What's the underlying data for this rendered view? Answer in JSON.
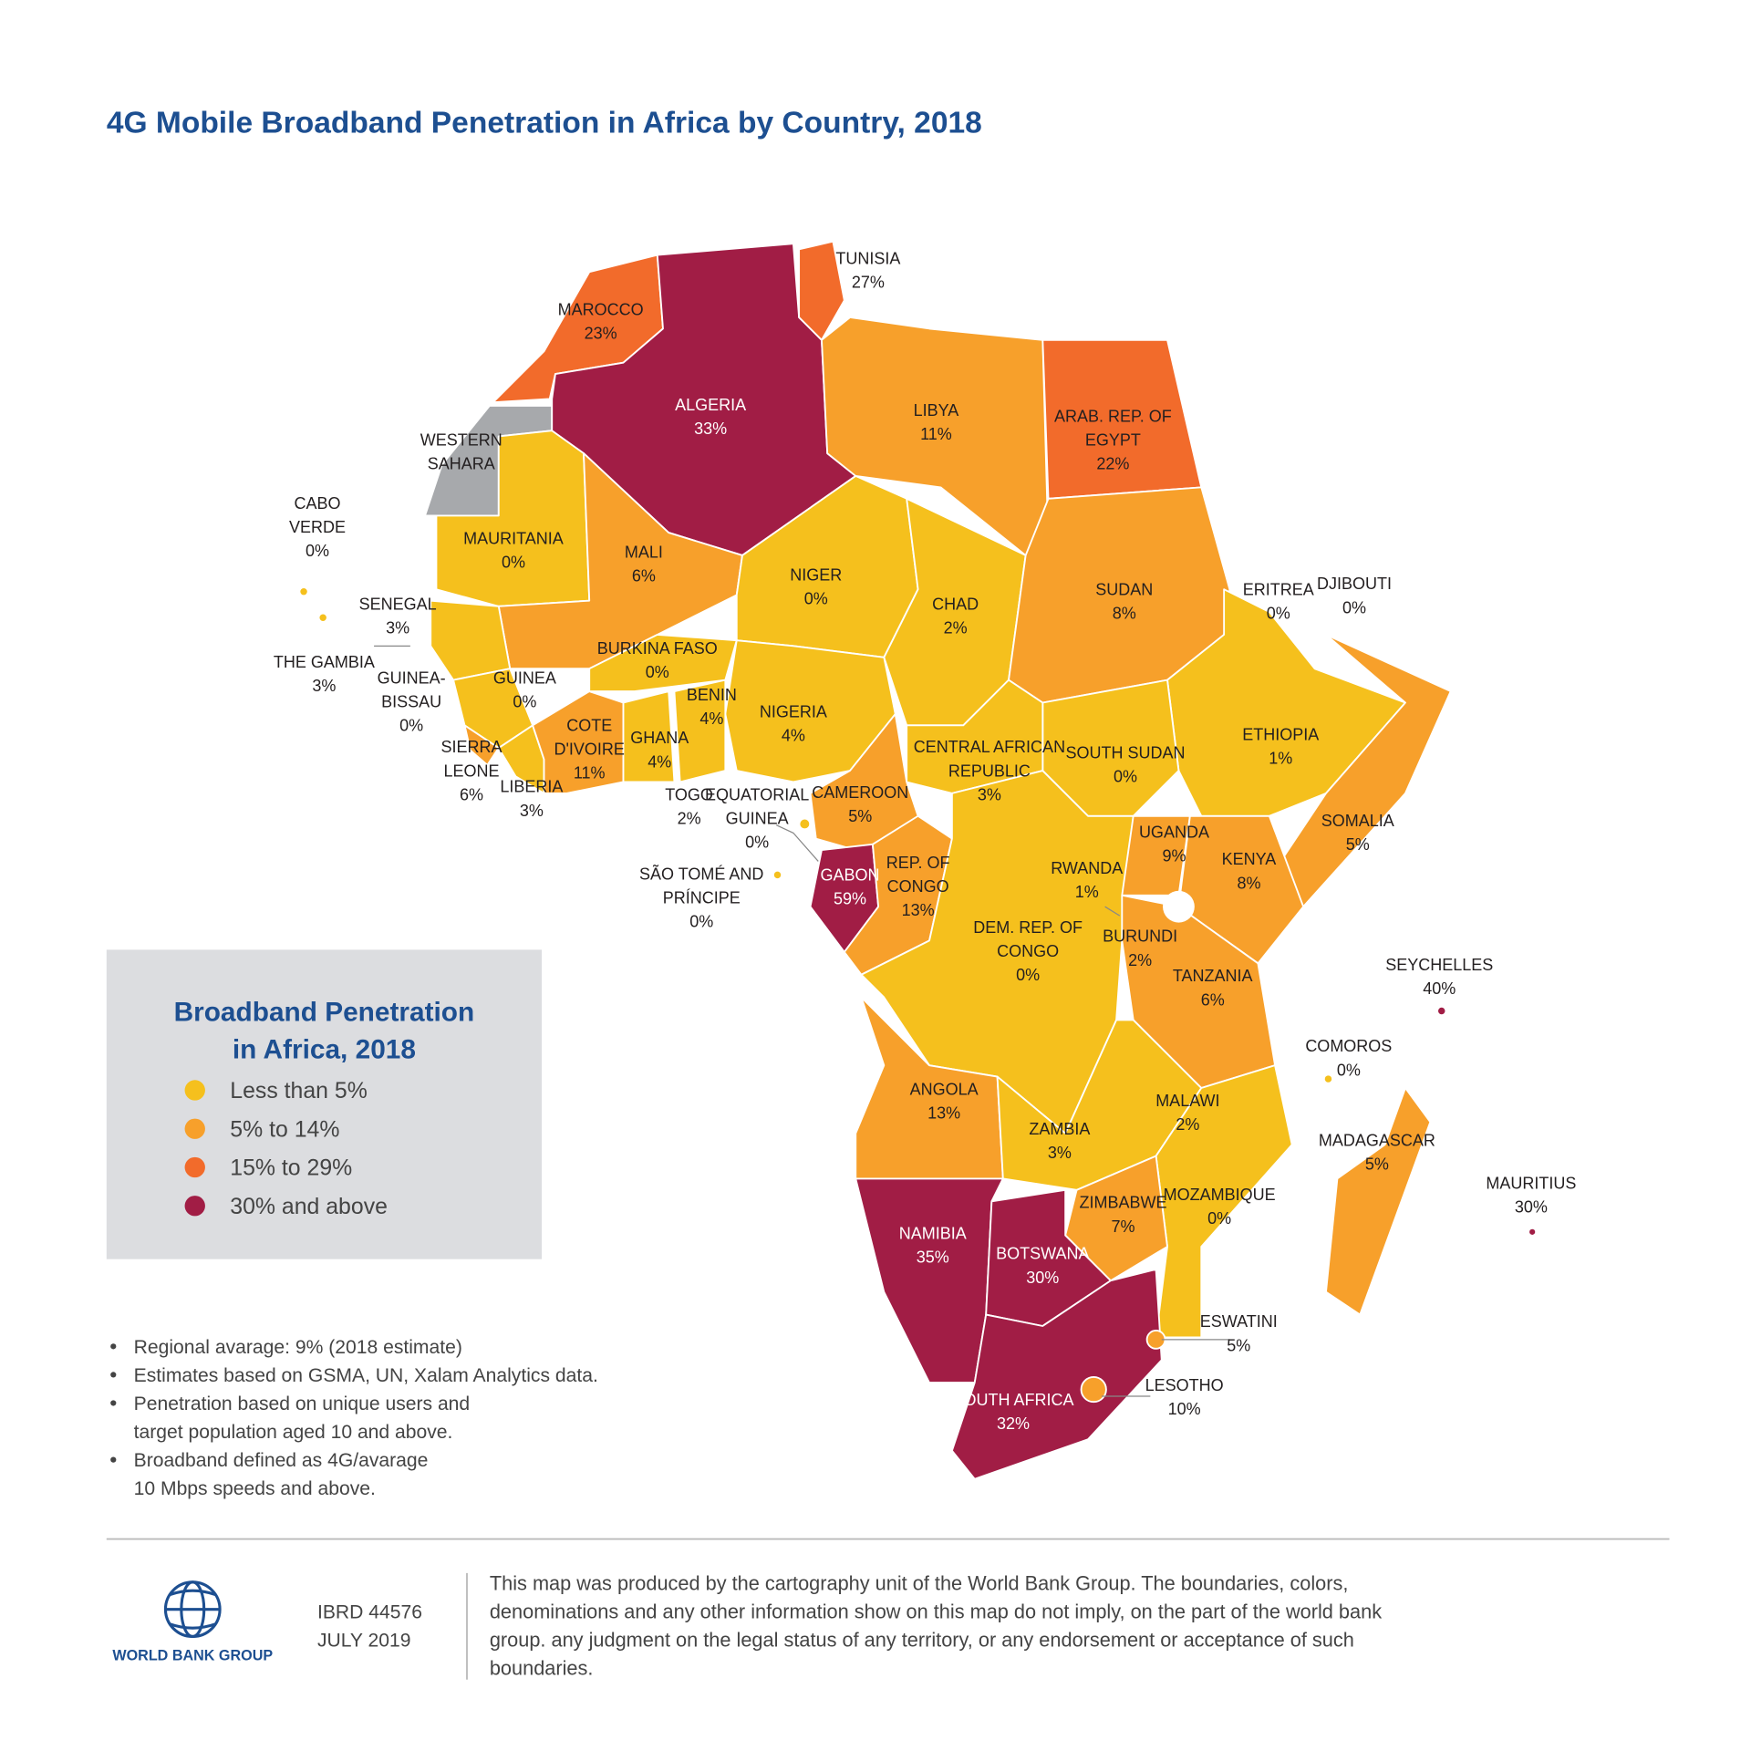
{
  "title": "4G Mobile Broadband Penetration in Africa by Country, 2018",
  "map": {
    "countries": [
      {
        "name": [
          "TUNISIA"
        ],
        "value": "27%"
      },
      {
        "name": [
          "MAROCCO"
        ],
        "value": "23%"
      },
      {
        "name": [
          "ALGERIA"
        ],
        "value": "33%"
      },
      {
        "name": [
          "LIBYA"
        ],
        "value": "11%"
      },
      {
        "name": [
          "ARAB. REP. OF",
          "EGYPT"
        ],
        "value": "22%"
      },
      {
        "name": [
          "WESTERN",
          "SAHARA"
        ]
      },
      {
        "name": [
          "CABO",
          "VERDE"
        ],
        "value": "0%"
      },
      {
        "name": [
          "MAURITANIA"
        ],
        "value": "0%"
      },
      {
        "name": [
          "MALI"
        ],
        "value": "6%"
      },
      {
        "name": [
          "NIGER"
        ],
        "value": "0%"
      },
      {
        "name": [
          "CHAD"
        ],
        "value": "2%"
      },
      {
        "name": [
          "SUDAN"
        ],
        "value": "8%"
      },
      {
        "name": [
          "ERITREA"
        ],
        "value": "0%"
      },
      {
        "name": [
          "DJIBOUTI"
        ],
        "value": "0%"
      },
      {
        "name": [
          "SENEGAL"
        ],
        "value": "3%"
      },
      {
        "name": [
          "THE GAMBIA"
        ],
        "value": "3%"
      },
      {
        "name": [
          "BURKINA FASO"
        ],
        "value": "0%"
      },
      {
        "name": [
          "GUINEA-",
          "BISSAU"
        ],
        "value": "0%"
      },
      {
        "name": [
          "GUINEA"
        ],
        "value": "0%"
      },
      {
        "name": [
          "BENIN"
        ],
        "value": "4%"
      },
      {
        "name": [
          "NIGERIA"
        ],
        "value": "4%"
      },
      {
        "name": [
          "ETHIOPIA"
        ],
        "value": "1%"
      },
      {
        "name": [
          "SOUTH SUDAN"
        ],
        "value": "0%"
      },
      {
        "name": [
          "CENTRAL AFRICAN",
          "REPUBLIC"
        ],
        "value": "3%"
      },
      {
        "name": [
          "COTE",
          "D'IVOIRE"
        ],
        "value": "11%"
      },
      {
        "name": [
          "GHANA"
        ],
        "value": "4%"
      },
      {
        "name": [
          "SIERRA",
          "LEONE"
        ],
        "value": "6%"
      },
      {
        "name": [
          "LIBERIA"
        ],
        "value": "3%"
      },
      {
        "name": [
          "TOGO"
        ],
        "value": "2%"
      },
      {
        "name": [
          "EQUATORIAL",
          "GUINEA"
        ],
        "value": "0%"
      },
      {
        "name": [
          "CAMEROON"
        ],
        "value": "5%"
      },
      {
        "name": [
          "SOMALIA"
        ],
        "value": "5%"
      },
      {
        "name": [
          "UGANDA"
        ],
        "value": "9%"
      },
      {
        "name": [
          "KENYA"
        ],
        "value": "8%"
      },
      {
        "name": [
          "RWANDA"
        ],
        "value": "1%"
      },
      {
        "name": [
          "SÃO TOMÉ AND",
          "PRÍNCIPE"
        ],
        "value": "0%"
      },
      {
        "name": [
          "GABON"
        ],
        "value": "59%"
      },
      {
        "name": [
          "REP. OF",
          "CONGO"
        ],
        "value": "13%"
      },
      {
        "name": [
          "DEM. REP. OF",
          "CONGO"
        ],
        "value": "0%"
      },
      {
        "name": [
          "BURUNDI"
        ],
        "value": "2%"
      },
      {
        "name": [
          "TANZANIA"
        ],
        "value": "6%"
      },
      {
        "name": [
          "SEYCHELLES"
        ],
        "value": "40%"
      },
      {
        "name": [
          "COMOROS"
        ],
        "value": "0%"
      },
      {
        "name": [
          "ANGOLA"
        ],
        "value": "13%"
      },
      {
        "name": [
          "ZAMBIA"
        ],
        "value": "3%"
      },
      {
        "name": [
          "MALAWI"
        ],
        "value": "2%"
      },
      {
        "name": [
          "MADAGASCAR"
        ],
        "value": "5%"
      },
      {
        "name": [
          "MOZAMBIQUE"
        ],
        "value": "0%"
      },
      {
        "name": [
          "MAURITIUS"
        ],
        "value": "30%"
      },
      {
        "name": [
          "ZIMBABWE"
        ],
        "value": "7%"
      },
      {
        "name": [
          "NAMIBIA"
        ],
        "value": "35%"
      },
      {
        "name": [
          "BOTSWANA"
        ],
        "value": "30%"
      },
      {
        "name": [
          "ESWATINI"
        ],
        "value": "5%"
      },
      {
        "name": [
          "LESOTHO"
        ],
        "value": "10%"
      },
      {
        "name": [
          "SOUTH AFRICA"
        ],
        "value": "32%"
      }
    ]
  },
  "legend": {
    "title": [
      "Broadband Penetration",
      "in Africa, 2018"
    ],
    "items": [
      {
        "label": "Less than 5%",
        "color": "#f5c01d"
      },
      {
        "label": "5% to 14%",
        "color": "#f7a02b"
      },
      {
        "label": "15% to 29%",
        "color": "#f26b2b"
      },
      {
        "label": "30% and above",
        "color": "#a11d45"
      }
    ]
  },
  "notes": [
    [
      "Regional avarage: 9% (2018 estimate)"
    ],
    [
      "Estimates based on GSMA, UN, Xalam Analytics data."
    ],
    [
      "Penetration based on unique users and",
      "target population aged 10 and above."
    ],
    [
      "Broadband defined as 4G/avarage",
      "10 Mbps speeds and above."
    ]
  ],
  "footer": {
    "logo": "WORLD BANK GROUP",
    "code": "IBRD 44576",
    "date": "JULY 2019",
    "disclaimer": [
      "This map was produced by the cartography unit of the World Bank Group. The boundaries, colors,",
      "denominations and any other information show on this map do not imply, on the part of the world bank",
      "group. any judgment on the legal status of any territory, or any endorsement or acceptance of such",
      "boundaries."
    ]
  }
}
